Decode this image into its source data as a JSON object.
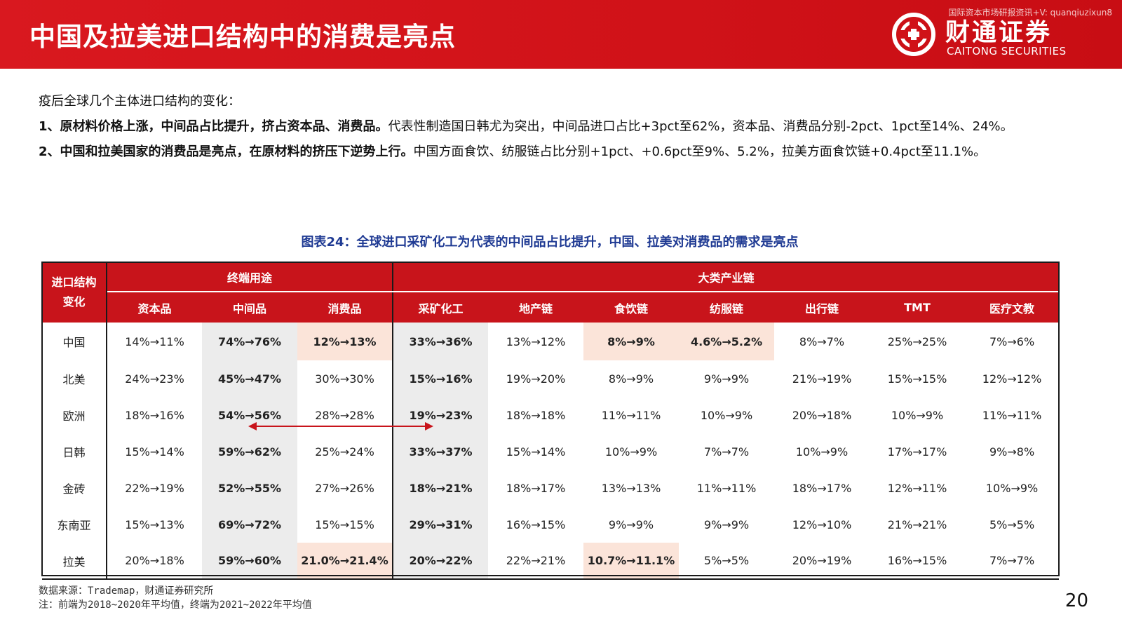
{
  "header": {
    "title": "中国及拉美进口结构中的消费是亮点",
    "watermark": "国际资本市场研报资讯+V: quanqiuzixun8",
    "logo_cn": "财通证券",
    "logo_en": "CAITONG SECURITIES",
    "brand_color": "#d01218"
  },
  "intro": "疫后全球几个主体进口结构的变化：",
  "points": [
    {
      "bold": "1、原材料价格上涨，中间品占比提升，挤占资本品、消费品。",
      "text": "代表性制造国日韩尤为突出，中间品进口占比+3pct至62%，资本品、消费品分别-2pct、1pct至14%、24%。"
    },
    {
      "bold": "2、中国和拉美国家的消费品是亮点，在原材料的挤压下逆势上行。",
      "text": "中国方面食饮、纺服链占比分别+1pct、+0.6pct至9%、5.2%，拉美方面食饮链+0.4pct至11.1%。"
    }
  ],
  "figure_title": "图表24：全球进口采矿化工为代表的中间品占比提升，中国、拉美对消费品的需求是亮点",
  "table": {
    "row_header_line1": "进口结构",
    "row_header_line2": "变化",
    "group1": "终端用途",
    "group2": "大类产业链",
    "columns": [
      "资本品",
      "中间品",
      "消费品",
      "采矿化工",
      "地产链",
      "食饮链",
      "纺服链",
      "出行链",
      "TMT",
      "医疗文教"
    ],
    "rows": [
      {
        "label": "中国",
        "cells": [
          "14%→11%",
          "74%→76%",
          "12%→13%",
          "33%→36%",
          "13%→12%",
          "8%→9%",
          "4.6%→5.2%",
          "8%→7%",
          "25%→25%",
          "7%→6%"
        ]
      },
      {
        "label": "北美",
        "cells": [
          "24%→23%",
          "45%→47%",
          "30%→30%",
          "15%→16%",
          "19%→20%",
          "8%→9%",
          "9%→9%",
          "21%→19%",
          "15%→15%",
          "12%→12%"
        ]
      },
      {
        "label": "欧洲",
        "cells": [
          "18%→16%",
          "54%→56%",
          "28%→28%",
          "19%→23%",
          "18%→18%",
          "11%→11%",
          "10%→9%",
          "20%→18%",
          "10%→9%",
          "11%→11%"
        ]
      },
      {
        "label": "日韩",
        "cells": [
          "15%→14%",
          "59%→62%",
          "25%→24%",
          "33%→37%",
          "15%→14%",
          "10%→9%",
          "7%→7%",
          "10%→9%",
          "17%→17%",
          "9%→8%"
        ]
      },
      {
        "label": "金砖",
        "cells": [
          "22%→19%",
          "52%→55%",
          "27%→26%",
          "18%→21%",
          "18%→17%",
          "13%→13%",
          "11%→11%",
          "18%→17%",
          "12%→11%",
          "10%→9%"
        ]
      },
      {
        "label": "东南亚",
        "cells": [
          "15%→13%",
          "69%→72%",
          "15%→15%",
          "29%→31%",
          "16%→15%",
          "9%→9%",
          "9%→9%",
          "12%→10%",
          "21%→21%",
          "5%→5%"
        ]
      },
      {
        "label": "拉美",
        "cells": [
          "20%→18%",
          "59%→60%",
          "21.0%→21.4%",
          "20%→22%",
          "22%→21%",
          "10.7%→11.1%",
          "5%→5%",
          "20%→19%",
          "16%→15%",
          "7%→7%"
        ]
      }
    ]
  },
  "source": "数据来源：Trademap，财通证券研究所",
  "note": "注：前端为2018~2020年平均值，终端为2021~2022年平均值",
  "page_number": "20"
}
